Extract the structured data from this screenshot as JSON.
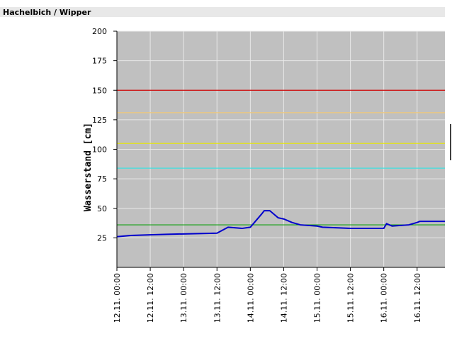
{
  "chart_data": {
    "type": "line",
    "title": "Hachelbich / Wipper",
    "y_label": "Wasserstand [cm]",
    "x": [
      "12.11. 00:00",
      "12.11. 05:00",
      "12.11. 18:00",
      "13.11. 12:00",
      "13.11. 16:00",
      "13.11. 21:00",
      "14.11. 00:00",
      "14.11. 04:00",
      "14.11. 05:00",
      "14.11. 07:00",
      "14.11. 10:00",
      "14.11. 12:00",
      "14.11. 15:00",
      "14.11. 18:00",
      "15.11. 00:00",
      "15.11. 02:00",
      "15.11. 12:00",
      "16.11. 00:00",
      "16.11. 01:00",
      "16.11. 03:00",
      "16.11. 09:00",
      "16.11. 12:00",
      "16.11. 13:00",
      "16.11. 22:00"
    ],
    "series": [
      {
        "color": "#0000cc",
        "values": [
          26,
          27,
          28,
          29,
          34,
          33,
          34,
          45,
          48,
          48,
          42,
          41,
          38,
          36,
          35,
          34,
          33,
          33,
          37,
          35,
          36,
          38,
          39,
          39
        ]
      }
    ],
    "thresholds": [
      {
        "value": 150,
        "color": "#cc0000"
      },
      {
        "value": 131,
        "color": "#f0c878"
      },
      {
        "value": 105,
        "color": "#e8e800"
      },
      {
        "value": 84,
        "color": "#40e0e0"
      },
      {
        "value": 36,
        "color": "#10a010"
      }
    ],
    "xlim": [
      "12.11. 00:00",
      "16.11. 22:00"
    ],
    "xticks": [
      "12.11. 00:00",
      "12.11. 12:00",
      "13.11. 00:00",
      "13.11. 12:00",
      "14.11. 00:00",
      "14.11. 12:00",
      "15.11. 00:00",
      "15.11. 12:00",
      "16.11. 00:00",
      "16.11. 12:00"
    ],
    "ylim": [
      0,
      200
    ],
    "yticks": [
      25,
      50,
      75,
      100,
      125,
      150,
      175,
      200
    ],
    "grid": true,
    "background": "#c0c0c0"
  }
}
